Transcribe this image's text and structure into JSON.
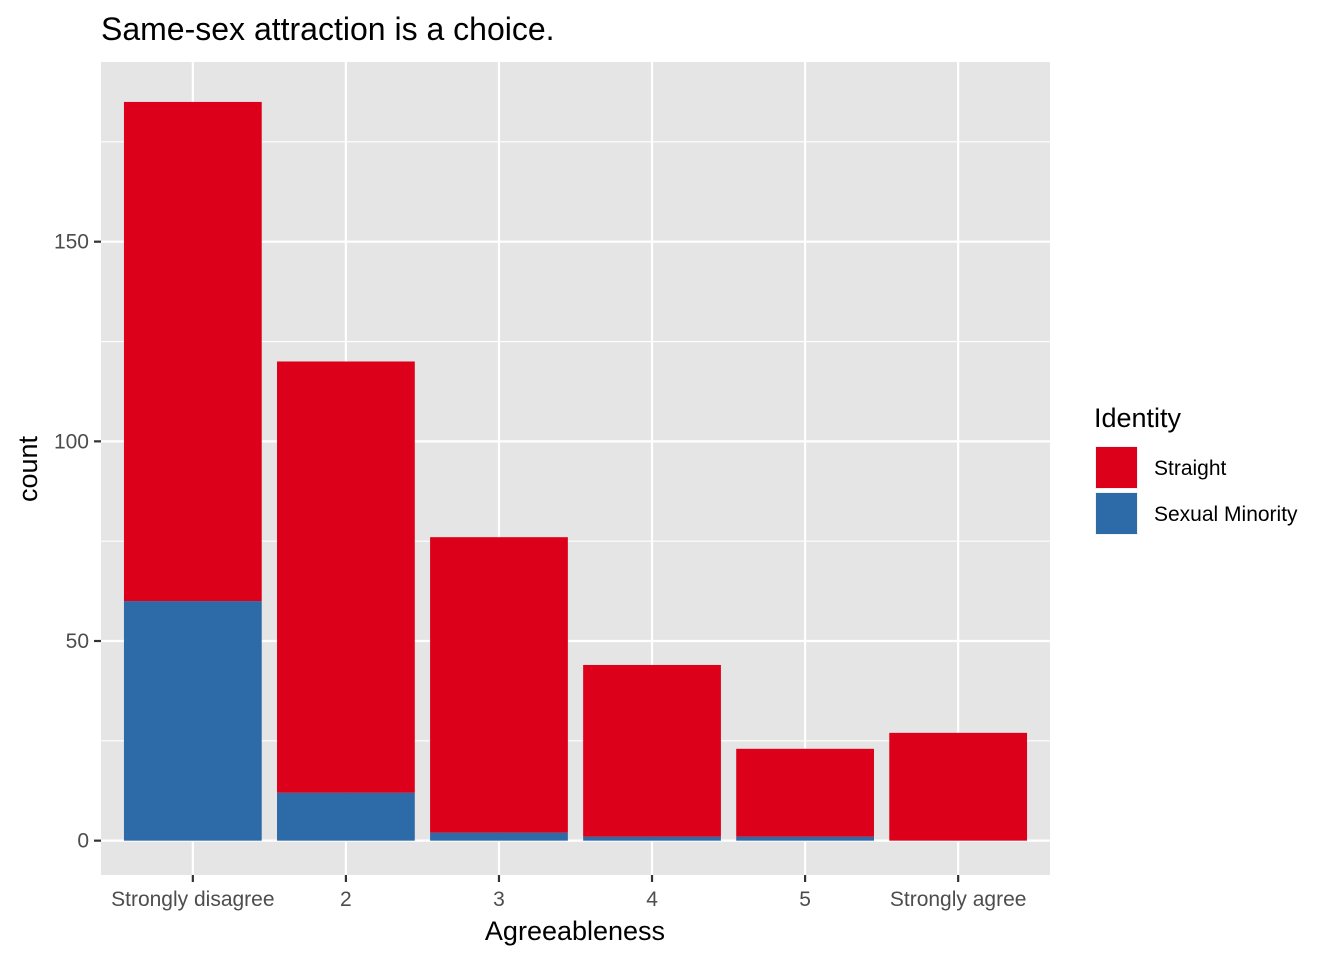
{
  "chart_data": {
    "type": "bar",
    "stacked": true,
    "title": "Same-sex attraction is a choice.",
    "xlabel": "Agreeableness",
    "ylabel": "count",
    "categories": [
      "Strongly disagree",
      "2",
      "3",
      "4",
      "5",
      "Strongly agree"
    ],
    "series": [
      {
        "name": "Straight",
        "values": [
          125,
          108,
          74,
          43,
          22,
          27
        ],
        "color": "#DC001A"
      },
      {
        "name": "Sexual Minority",
        "values": [
          60,
          12,
          2,
          1,
          1,
          0
        ],
        "color": "#2D6AA8"
      }
    ],
    "ylim": [
      -8.6,
      195
    ],
    "yticks": [
      0,
      50,
      100,
      150
    ],
    "grid": true,
    "legend": {
      "title": "Identity",
      "position": "right",
      "entries": [
        "Straight",
        "Sexual Minority"
      ]
    },
    "panel_background": "#E5E5E5"
  }
}
